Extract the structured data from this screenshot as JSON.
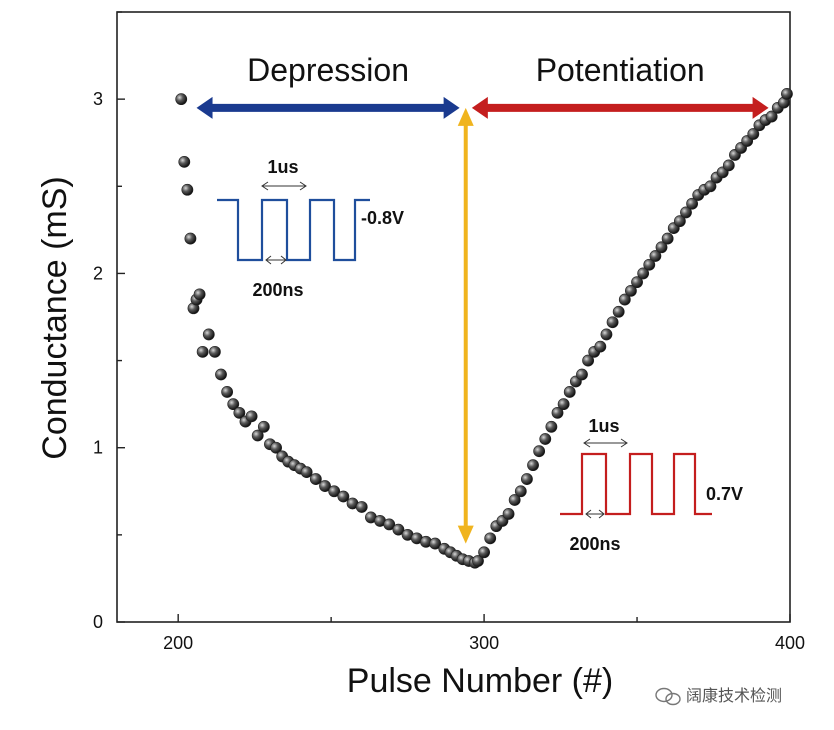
{
  "chart_data": {
    "type": "scatter",
    "title": "",
    "xlabel": "Pulse Number (#)",
    "ylabel": "Conductance (mS)",
    "xlim": [
      180,
      400
    ],
    "ylim": [
      0,
      3.5
    ],
    "xticks": [
      200,
      300,
      400
    ],
    "yticks": [
      0,
      1,
      2,
      3
    ],
    "xtick_labels": [
      "200",
      "300",
      "400"
    ],
    "ytick_labels": [
      "0",
      "1",
      "2",
      "3"
    ],
    "grid": false,
    "series": [
      {
        "name": "Depression",
        "x": [
          201,
          202,
          203,
          204,
          205,
          206,
          207,
          208,
          210,
          212,
          214,
          216,
          218,
          220,
          222,
          224,
          226,
          228,
          230,
          232,
          234,
          236,
          238,
          240,
          242,
          245,
          248,
          251,
          254,
          257,
          260,
          263,
          266,
          269,
          272,
          275,
          278,
          281,
          284,
          287,
          289,
          291,
          293,
          295,
          297
        ],
        "y": [
          3.0,
          2.64,
          2.48,
          2.2,
          1.8,
          1.85,
          1.88,
          1.55,
          1.65,
          1.55,
          1.42,
          1.32,
          1.25,
          1.2,
          1.15,
          1.18,
          1.07,
          1.12,
          1.02,
          1.0,
          0.95,
          0.92,
          0.9,
          0.88,
          0.86,
          0.82,
          0.78,
          0.75,
          0.72,
          0.68,
          0.66,
          0.6,
          0.58,
          0.56,
          0.53,
          0.5,
          0.48,
          0.46,
          0.45,
          0.42,
          0.4,
          0.38,
          0.36,
          0.35,
          0.34
        ]
      },
      {
        "name": "Potentiation",
        "x": [
          298,
          300,
          302,
          304,
          306,
          308,
          310,
          312,
          314,
          316,
          318,
          320,
          322,
          324,
          326,
          328,
          330,
          332,
          334,
          336,
          338,
          340,
          342,
          344,
          346,
          348,
          350,
          352,
          354,
          356,
          358,
          360,
          362,
          364,
          366,
          368,
          370,
          372,
          374,
          376,
          378,
          380,
          382,
          384,
          386,
          388,
          390,
          392,
          394,
          396,
          398,
          399
        ],
        "y": [
          0.35,
          0.4,
          0.48,
          0.55,
          0.58,
          0.62,
          0.7,
          0.75,
          0.82,
          0.9,
          0.98,
          1.05,
          1.12,
          1.2,
          1.25,
          1.32,
          1.38,
          1.42,
          1.5,
          1.55,
          1.58,
          1.65,
          1.72,
          1.78,
          1.85,
          1.9,
          1.95,
          2.0,
          2.05,
          2.1,
          2.15,
          2.2,
          2.26,
          2.3,
          2.35,
          2.4,
          2.45,
          2.48,
          2.5,
          2.55,
          2.58,
          2.62,
          2.68,
          2.72,
          2.76,
          2.8,
          2.85,
          2.88,
          2.9,
          2.95,
          2.98,
          3.03
        ]
      }
    ],
    "annotations": {
      "depression_label": "Depression",
      "potentiation_label": "Potentiation",
      "depression_color": "#1a3a8f",
      "potentiation_color": "#c41e1e",
      "divider_color": "#f0b41e",
      "depression_arrow": {
        "x_start": 206,
        "x_end": 292,
        "y": 2.95
      },
      "potentiation_arrow": {
        "x_start": 296,
        "x_end": 393,
        "y": 2.95
      },
      "vertical_arrow": {
        "x": 294,
        "y_start": 0.45,
        "y_end": 2.95
      },
      "inset_depression": {
        "pulse_width": "1us",
        "interval": "200ns",
        "amplitude": "-0.8V"
      },
      "inset_potentiation": {
        "pulse_width": "1us",
        "interval": "200ns",
        "amplitude": "0.7V"
      }
    }
  },
  "watermark": {
    "text": "阔康技术检测",
    "icon": "wechat-icon"
  }
}
